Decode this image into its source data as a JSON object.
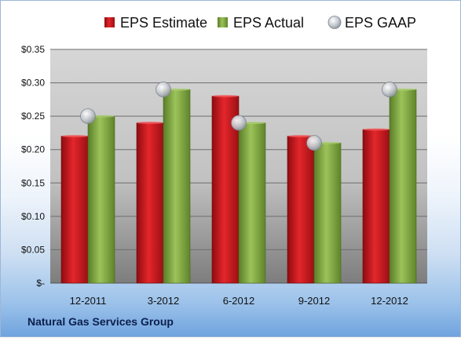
{
  "chart_data": {
    "type": "bar",
    "categories": [
      "12-2011",
      "3-2012",
      "6-2012",
      "9-2012",
      "12-2012"
    ],
    "series": [
      {
        "name": "EPS Estimate",
        "values": [
          0.22,
          0.24,
          0.28,
          0.22,
          0.23
        ],
        "color": "#c8161d",
        "kind": "bar"
      },
      {
        "name": "EPS Actual",
        "values": [
          0.25,
          0.29,
          0.24,
          0.21,
          0.29
        ],
        "color": "#78a23a",
        "kind": "bar"
      },
      {
        "name": "EPS GAAP",
        "values": [
          0.25,
          0.29,
          0.24,
          0.21,
          0.29
        ],
        "color": "#bfc4cc",
        "kind": "marker"
      }
    ],
    "yticks": [
      "$-",
      "$0.05",
      "$0.10",
      "$0.15",
      "$0.20",
      "$0.25",
      "$0.30",
      "$0.35"
    ],
    "ylim": [
      0,
      0.35
    ],
    "grid": true,
    "legend_position": "top",
    "company": "Natural Gas Services Group"
  }
}
